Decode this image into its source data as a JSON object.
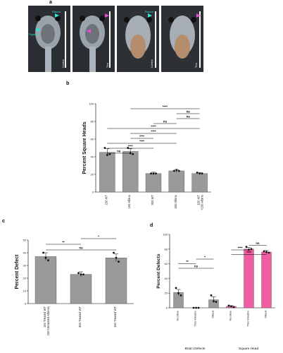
{
  "panels": {
    "a": "a",
    "b": "b",
    "c": "c",
    "d": "d"
  },
  "photos": [
    {
      "label": "Control",
      "annotations": [
        "Round",
        "Pigment"
      ],
      "arrow_colors": [
        "#2fe3d6",
        "#2fe3d6"
      ]
    },
    {
      "label": "Thio",
      "annotations": [],
      "arrow_colors": [
        "#e54bd6",
        "#e54bd6"
      ]
    },
    {
      "label": "Control",
      "annotations": [
        "Round"
      ],
      "arrow_colors": [
        "#2fe3d6"
      ]
    },
    {
      "label": "Thio",
      "annotations": [],
      "arrow_colors": [
        "#e54bd6"
      ]
    }
  ],
  "chart_data": [
    {
      "id": "b",
      "type": "bar",
      "ylabel": "Percent Square Heads",
      "ylim": [
        0,
        100
      ],
      "yticks": [
        "0",
        "20",
        "40",
        "60",
        "80",
        "100"
      ],
      "categories": [
        "150 WT",
        "150 Albino",
        "300 WT",
        "300 Albino",
        "150 WT\n+150 Albino"
      ],
      "values": [
        45,
        46,
        21,
        24,
        21
      ],
      "errors": [
        4,
        3,
        1.5,
        1.5,
        1
      ],
      "points": [
        [
          50,
          42,
          43
        ],
        [
          50,
          44,
          43
        ],
        [
          21,
          21,
          21
        ],
        [
          24,
          25,
          24
        ],
        [
          22,
          21,
          21
        ]
      ],
      "bar_color": "#9a9a9a",
      "significance": [
        {
          "label": "ns",
          "from": 0,
          "to": 1
        },
        {
          "label": "****",
          "from": 0,
          "to": 2
        },
        {
          "label": "****",
          "from": 0,
          "to": 3
        },
        {
          "label": "****",
          "from": 1,
          "to": 2
        },
        {
          "label": "****",
          "from": 1,
          "to": 3
        },
        {
          "label": "****",
          "from": 0,
          "to": 4
        },
        {
          "label": "ns",
          "from": 2,
          "to": 3
        },
        {
          "label": "ns",
          "from": 3,
          "to": 4
        },
        {
          "label": "ns",
          "from": 3,
          "to": 4
        },
        {
          "label": "****",
          "from": 1,
          "to": 4
        }
      ]
    },
    {
      "id": "c",
      "type": "bar",
      "ylabel": "Percent Defect",
      "ylim": [
        0,
        50
      ],
      "categories": [
        "150 Treated WT\n150 Untreated Albinos",
        "300 Treated WT",
        "150 Treated WT"
      ],
      "values": [
        37,
        23,
        36
      ],
      "errors": [
        3,
        2,
        3
      ],
      "points": [
        [
          40,
          36,
          34
        ],
        [
          24,
          23,
          23
        ],
        [
          40,
          36,
          33
        ]
      ],
      "bar_color": "#9a9a9a",
      "significance": [
        {
          "label": "ns",
          "from": 0,
          "to": 2
        },
        {
          "label": "**",
          "from": 0,
          "to": 1
        },
        {
          "label": "*",
          "from": 1,
          "to": 2
        }
      ]
    },
    {
      "id": "d",
      "type": "bar",
      "ylabel": "Percent Defects",
      "ylim": [
        0,
        100
      ],
      "yticks": [
        "0",
        "20",
        "40",
        "60",
        "80",
        "100"
      ],
      "groups": [
        "Brain Defects",
        "Square Head"
      ],
      "categories": [
        "Nicotine",
        "Thio Kinetire",
        "Mixed",
        "Nicotine",
        "Thio Kinetire",
        "Mixed"
      ],
      "values": [
        21,
        0,
        11,
        2,
        80,
        76
      ],
      "errors": [
        4,
        0,
        4,
        1,
        2,
        2
      ],
      "points": [
        [
          27,
          20,
          17
        ],
        [
          0,
          0,
          0
        ],
        [
          17,
          9,
          8
        ],
        [
          3,
          2,
          1
        ],
        [
          83,
          79,
          80
        ],
        [
          77,
          76,
          75
        ]
      ],
      "bar_colors": [
        "#9a9a9a",
        "#9a9a9a",
        "#9a9a9a",
        "#ef5ea3",
        "#ef5ea3",
        "#ef5ea3"
      ],
      "significance": [
        {
          "label": "ns",
          "from": 0,
          "to": 2
        },
        {
          "label": "**",
          "from": 0,
          "to": 1
        },
        {
          "label": "*",
          "from": 1,
          "to": 2
        },
        {
          "label": "****",
          "from": 3,
          "to": 5
        },
        {
          "label": "****",
          "from": 3,
          "to": 4
        },
        {
          "label": "ns",
          "from": 4,
          "to": 5
        }
      ]
    }
  ]
}
